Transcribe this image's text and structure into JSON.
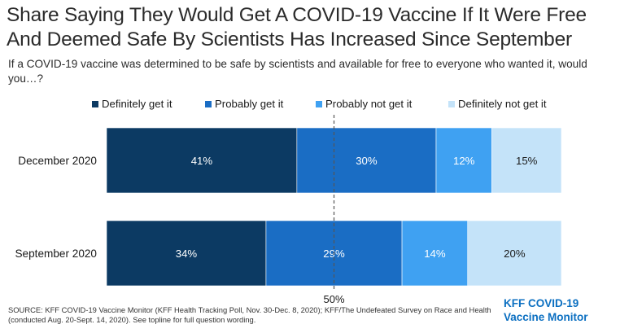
{
  "title": "Share Saying They Would Get A COVID-19 Vaccine If It Were Free And Deemed Safe By Scientists Has Increased Since September",
  "subtitle": "If a COVID-19 vaccine was determined to be safe by scientists and available for free to everyone who wanted it, would you…?",
  "legend": [
    {
      "label": "Definitely get it",
      "color": "#0c3a63"
    },
    {
      "label": "Probably get it",
      "color": "#1a6dc4"
    },
    {
      "label": "Probably not get it",
      "color": "#3fa1f2"
    },
    {
      "label": "Definitely not get it",
      "color": "#c4e3f9"
    }
  ],
  "chart_data": {
    "type": "bar",
    "orientation": "horizontal",
    "stacked": true,
    "categories": [
      "December 2020",
      "September 2020"
    ],
    "series": [
      {
        "name": "Definitely get it",
        "values": [
          41,
          34
        ],
        "labels": [
          "41%",
          "34%"
        ],
        "color": "#0c3a63",
        "label_color": "#ffffff"
      },
      {
        "name": "Probably get it",
        "values": [
          30,
          29
        ],
        "labels": [
          "30%",
          "29%"
        ],
        "color": "#1a6dc4",
        "label_color": "#ffffff"
      },
      {
        "name": "Probably not get it",
        "values": [
          12,
          14
        ],
        "labels": [
          "12%",
          "14%"
        ],
        "color": "#3fa1f2",
        "label_color": "#ffffff"
      },
      {
        "name": "Definitely not get it",
        "values": [
          15,
          20
        ],
        "labels": [
          "15%",
          "20%"
        ],
        "color": "#c4e3f9",
        "label_color": "#1a1a1a"
      }
    ],
    "reference_line": {
      "value": 50,
      "label": "50%",
      "style": "dashed"
    },
    "legend_position": "top",
    "grid": false
  },
  "source": "SOURCE: KFF COVID-19 Vaccine Monitor (KFF Health Tracking Poll, Nov. 30-Dec. 8, 2020); KFF/The Undefeated Survey on Race and Health (conducted Aug. 20-Sept. 14, 2020). See topline for full question wording.",
  "logo": {
    "line1": "KFF COVID-19",
    "line2": "Vaccine Monitor",
    "color": "#0b6fc1"
  }
}
